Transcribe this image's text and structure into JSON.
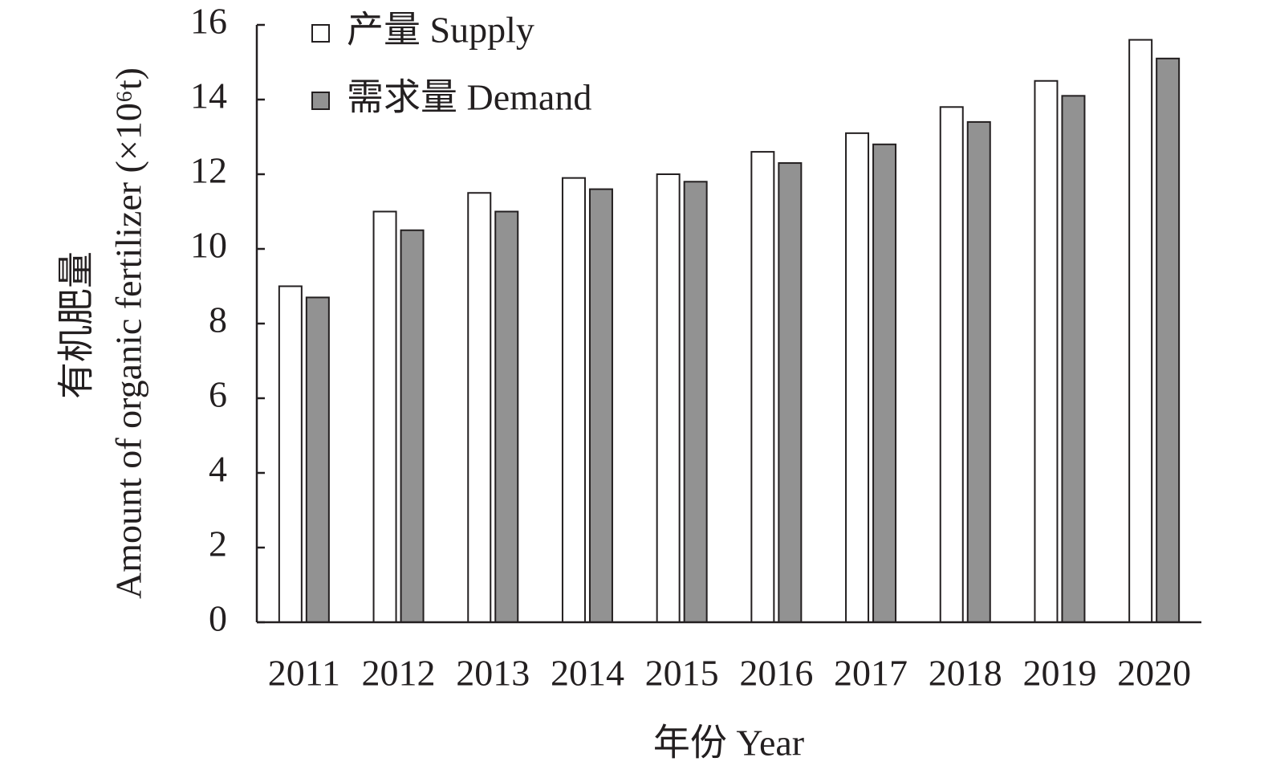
{
  "chart_data": {
    "type": "bar",
    "categories": [
      "2011",
      "2012",
      "2013",
      "2014",
      "2015",
      "2016",
      "2017",
      "2018",
      "2019",
      "2020"
    ],
    "series": [
      {
        "name": "产量 Supply",
        "color": "#ffffff",
        "values": [
          9.0,
          11.0,
          11.5,
          11.9,
          12.0,
          12.6,
          13.1,
          13.8,
          14.5,
          15.6
        ]
      },
      {
        "name": "需求量 Demand",
        "color": "#929292",
        "values": [
          8.7,
          10.5,
          11.0,
          11.6,
          11.8,
          12.3,
          12.8,
          13.4,
          14.1,
          15.1
        ]
      }
    ],
    "ylabel": [
      "有机肥量",
      "Amount of organic fertilizer (×10⁶t)"
    ],
    "xlabel": "年份 Year",
    "ylim": [
      0,
      16
    ],
    "yticks": [
      0,
      2,
      4,
      6,
      8,
      10,
      12,
      14,
      16
    ],
    "grid": false,
    "legend": "upper left"
  }
}
